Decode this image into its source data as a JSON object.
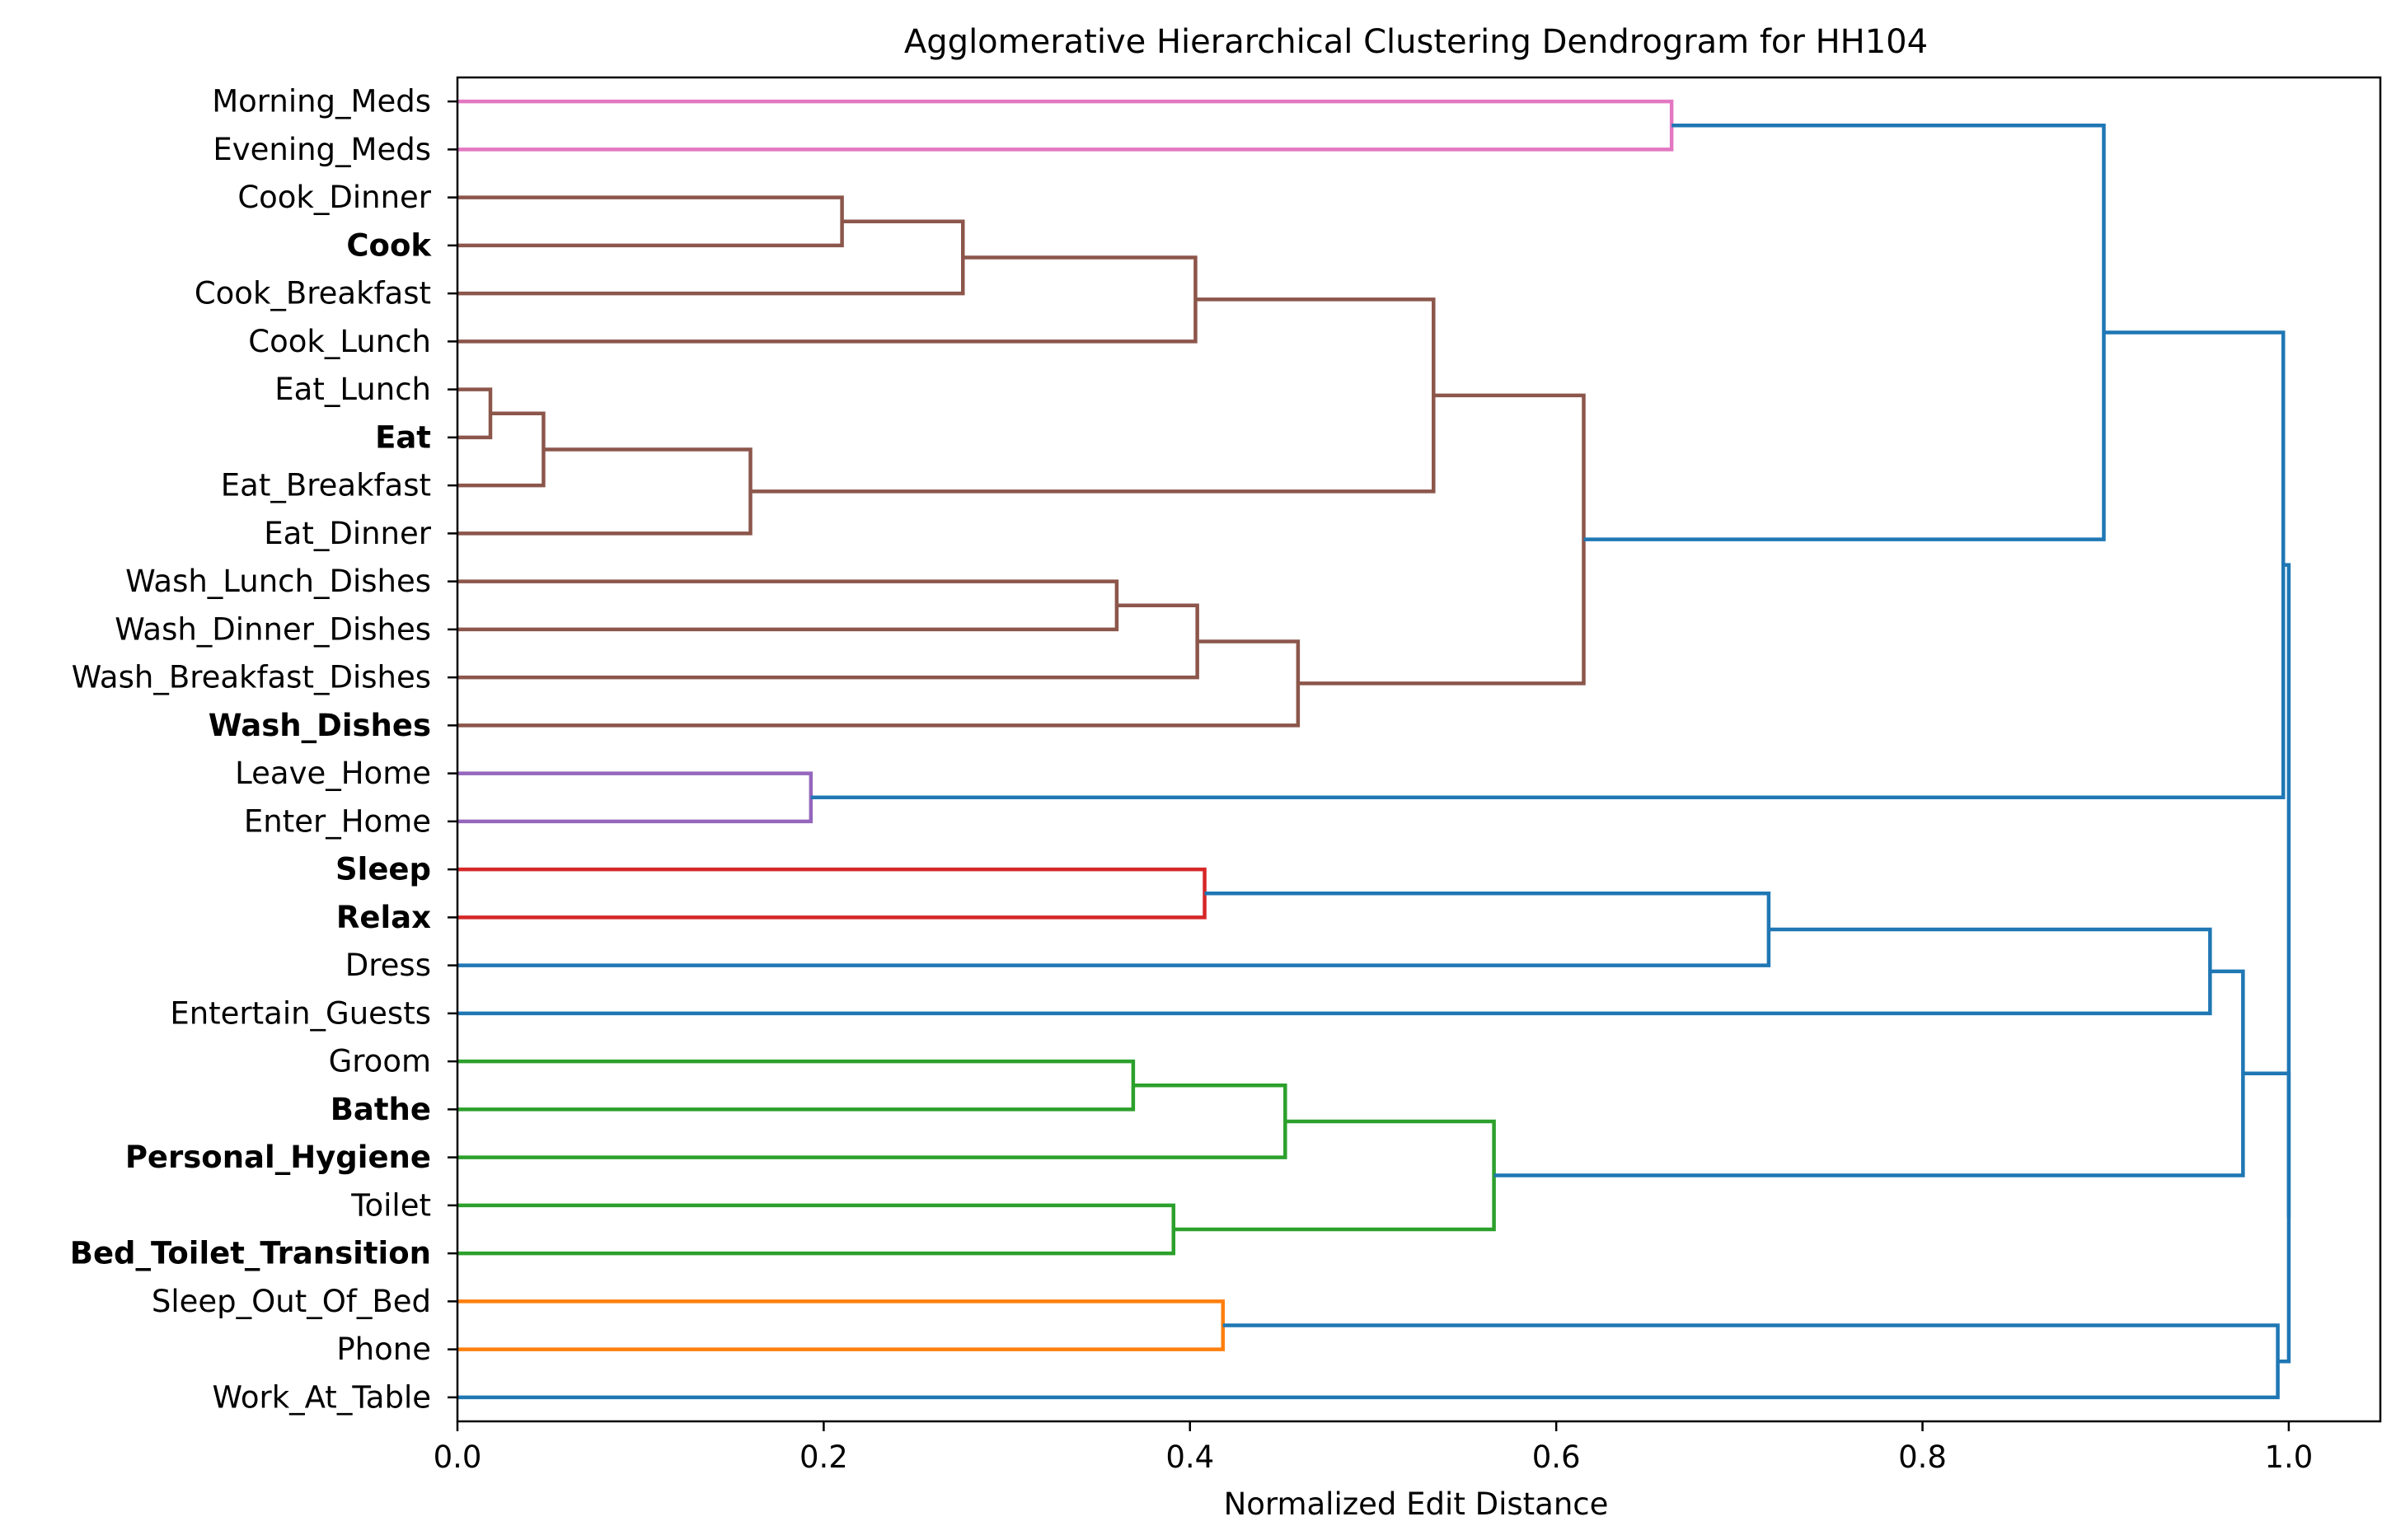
{
  "chart_data": {
    "type": "dendrogram",
    "orientation": "horizontal",
    "title": "Agglomerative Hierarchical Clustering Dendrogram for HH104",
    "xlabel": "Normalized Edit Distance",
    "ylabel": "",
    "xlim": [
      0.0,
      1.05
    ],
    "xticks": [
      {
        "value": 0.0,
        "label": "0.0"
      },
      {
        "value": 0.2,
        "label": "0.2"
      },
      {
        "value": 0.4,
        "label": "0.4"
      },
      {
        "value": 0.6,
        "label": "0.6"
      },
      {
        "value": 0.8,
        "label": "0.8"
      },
      {
        "value": 1.0,
        "label": "1.0"
      }
    ],
    "grid": false,
    "leaves": [
      {
        "label": "Morning_Meds",
        "bold": false
      },
      {
        "label": "Evening_Meds",
        "bold": false
      },
      {
        "label": "Cook_Dinner",
        "bold": false
      },
      {
        "label": "Cook",
        "bold": true
      },
      {
        "label": "Cook_Breakfast",
        "bold": false
      },
      {
        "label": "Cook_Lunch",
        "bold": false
      },
      {
        "label": "Eat_Lunch",
        "bold": false
      },
      {
        "label": "Eat",
        "bold": true
      },
      {
        "label": "Eat_Breakfast",
        "bold": false
      },
      {
        "label": "Eat_Dinner",
        "bold": false
      },
      {
        "label": "Wash_Lunch_Dishes",
        "bold": false
      },
      {
        "label": "Wash_Dinner_Dishes",
        "bold": false
      },
      {
        "label": "Wash_Breakfast_Dishes",
        "bold": false
      },
      {
        "label": "Wash_Dishes",
        "bold": true
      },
      {
        "label": "Leave_Home",
        "bold": false
      },
      {
        "label": "Enter_Home",
        "bold": false
      },
      {
        "label": "Sleep",
        "bold": true
      },
      {
        "label": "Relax",
        "bold": true
      },
      {
        "label": "Dress",
        "bold": false
      },
      {
        "label": "Entertain_Guests",
        "bold": false
      },
      {
        "label": "Groom",
        "bold": false
      },
      {
        "label": "Bathe",
        "bold": true
      },
      {
        "label": "Personal_Hygiene",
        "bold": true
      },
      {
        "label": "Toilet",
        "bold": false
      },
      {
        "label": "Bed_Toilet_Transition",
        "bold": true
      },
      {
        "label": "Sleep_Out_Of_Bed",
        "bold": false
      },
      {
        "label": "Phone",
        "bold": false
      },
      {
        "label": "Work_At_Table",
        "bold": false
      }
    ],
    "colors": {
      "pink": "#e377c2",
      "brown": "#8c564b",
      "purple": "#9467bd",
      "red": "#d62728",
      "green": "#2ca02c",
      "orange": "#ff7f0e",
      "blue": "#1f77b4"
    },
    "merges": [
      {
        "id": "m_meds",
        "children": [
          "Morning_Meds",
          "Evening_Meds"
        ],
        "distance": 0.663,
        "color": "pink"
      },
      {
        "id": "m_cook1",
        "children": [
          "Cook_Dinner",
          "Cook"
        ],
        "distance": 0.21,
        "color": "brown"
      },
      {
        "id": "m_cook2",
        "children": [
          "m_cook1",
          "Cook_Breakfast"
        ],
        "distance": 0.276,
        "color": "brown"
      },
      {
        "id": "m_cook3",
        "children": [
          "m_cook2",
          "Cook_Lunch"
        ],
        "distance": 0.403,
        "color": "brown"
      },
      {
        "id": "m_eat1",
        "children": [
          "Eat_Lunch",
          "Eat"
        ],
        "distance": 0.018,
        "color": "brown"
      },
      {
        "id": "m_eat2",
        "children": [
          "m_eat1",
          "Eat_Breakfast"
        ],
        "distance": 0.047,
        "color": "brown"
      },
      {
        "id": "m_eat3",
        "children": [
          "m_eat2",
          "Eat_Dinner"
        ],
        "distance": 0.16,
        "color": "brown"
      },
      {
        "id": "m_cookeat",
        "children": [
          "m_cook3",
          "m_eat3"
        ],
        "distance": 0.533,
        "color": "brown"
      },
      {
        "id": "m_wash1",
        "children": [
          "Wash_Lunch_Dishes",
          "Wash_Dinner_Dishes"
        ],
        "distance": 0.36,
        "color": "brown"
      },
      {
        "id": "m_wash2",
        "children": [
          "m_wash1",
          "Wash_Breakfast_Dishes"
        ],
        "distance": 0.404,
        "color": "brown"
      },
      {
        "id": "m_wash3",
        "children": [
          "m_wash2",
          "Wash_Dishes"
        ],
        "distance": 0.459,
        "color": "brown"
      },
      {
        "id": "m_kitchen",
        "children": [
          "m_cookeat",
          "m_wash3"
        ],
        "distance": 0.615,
        "color": "brown"
      },
      {
        "id": "m_top_a",
        "children": [
          "m_meds",
          "m_kitchen"
        ],
        "distance": 0.899,
        "color": "blue"
      },
      {
        "id": "m_home",
        "children": [
          "Leave_Home",
          "Enter_Home"
        ],
        "distance": 0.193,
        "color": "purple"
      },
      {
        "id": "m_top_b",
        "children": [
          "m_top_a",
          "m_home"
        ],
        "distance": 0.997,
        "color": "blue"
      },
      {
        "id": "m_rest1",
        "children": [
          "Sleep",
          "Relax"
        ],
        "distance": 0.408,
        "color": "red"
      },
      {
        "id": "m_rest2",
        "children": [
          "m_rest1",
          "Dress"
        ],
        "distance": 0.716,
        "color": "blue"
      },
      {
        "id": "m_rest3",
        "children": [
          "m_rest2",
          "Entertain_Guests"
        ],
        "distance": 0.957,
        "color": "blue"
      },
      {
        "id": "m_hyg1",
        "children": [
          "Groom",
          "Bathe"
        ],
        "distance": 0.369,
        "color": "green"
      },
      {
        "id": "m_hyg2",
        "children": [
          "m_hyg1",
          "Personal_Hygiene"
        ],
        "distance": 0.452,
        "color": "green"
      },
      {
        "id": "m_hyg3",
        "children": [
          "Toilet",
          "Bed_Toilet_Transition"
        ],
        "distance": 0.391,
        "color": "green"
      },
      {
        "id": "m_hyg4",
        "children": [
          "m_hyg2",
          "m_hyg3"
        ],
        "distance": 0.566,
        "color": "green"
      },
      {
        "id": "m_mid",
        "children": [
          "m_rest3",
          "m_hyg4"
        ],
        "distance": 0.975,
        "color": "blue"
      },
      {
        "id": "m_phone",
        "children": [
          "Sleep_Out_Of_Bed",
          "Phone"
        ],
        "distance": 0.418,
        "color": "orange"
      },
      {
        "id": "m_work",
        "children": [
          "m_phone",
          "Work_At_Table"
        ],
        "distance": 0.994,
        "color": "blue"
      },
      {
        "id": "m_bottom",
        "children": [
          "m_mid",
          "m_work"
        ],
        "distance": 1.0,
        "color": "blue"
      },
      {
        "id": "m_root",
        "children": [
          "m_top_b",
          "m_bottom"
        ],
        "distance": 1.0,
        "color": "blue"
      }
    ]
  }
}
